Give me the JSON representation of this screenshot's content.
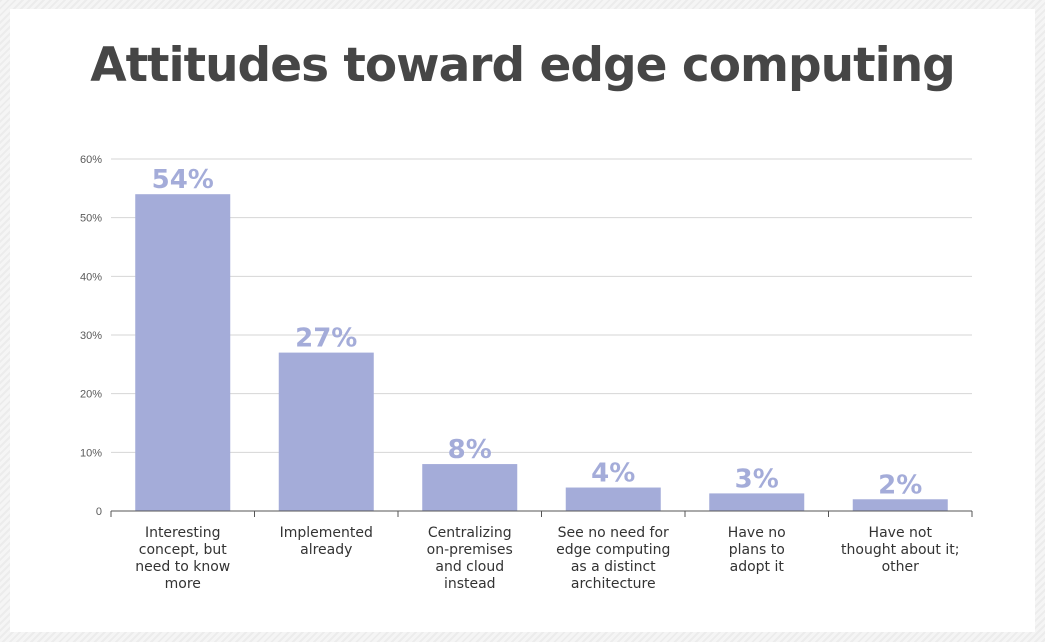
{
  "chart_data": {
    "type": "bar",
    "title": "Attitudes toward edge computing",
    "categories": [
      "Interesting concept, but need to know more",
      "Implemented already",
      "Centralizing on-premises and cloud instead",
      "See no need for edge computing as a distinct architecture",
      "Have no plans to adopt it",
      "Have not thought about it; other"
    ],
    "category_lines": [
      "Interesting\nconcept, but\nneed to know\nmore",
      "Implemented\nalready",
      "Centralizing\non-premises\nand cloud\ninstead",
      "See no need for\nedge computing\nas a distinct\narchitecture",
      "Have no\nplans to\nadopt it",
      "Have not\nthought about it;\nother"
    ],
    "values": [
      54,
      27,
      8,
      4,
      3,
      2
    ],
    "value_labels": [
      "54%",
      "27%",
      "8%",
      "4%",
      "3%",
      "2%"
    ],
    "yticks": [
      0,
      10,
      20,
      30,
      40,
      50,
      60
    ],
    "ytick_labels": [
      "0",
      "10%",
      "20%",
      "30%",
      "40%",
      "50%",
      "60%"
    ],
    "ylim": [
      0,
      60
    ],
    "grid": true,
    "bar_color": "#a4acd9",
    "label_color": "#a4acd9",
    "title_color": "#464646"
  }
}
